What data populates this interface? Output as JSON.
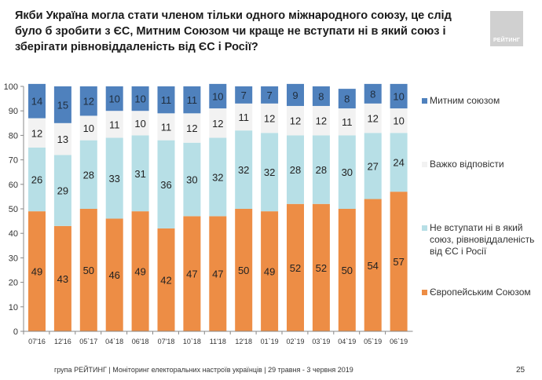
{
  "header": {
    "title": "Якби Україна могла стати членом тільки одного міжнародного союзу, це слід було б зробити з ЄС, Митним Союзом чи краще не вступати ні в який союз і зберігати рівновіддаленість від ЄС і Росії?",
    "logo_text": "РЕЙТИНГ"
  },
  "footer": {
    "text": "група РЕЙТИНГ | Моніторинг електоральних настроїв українців  | 29 травня - 3 червня 2019",
    "page_number": "25"
  },
  "chart_data": {
    "type": "bar",
    "stacked": true,
    "title": "",
    "xlabel": "",
    "ylabel": "",
    "ylim": [
      0,
      100
    ],
    "yticks": [
      0,
      10,
      20,
      30,
      40,
      50,
      60,
      70,
      80,
      90,
      100
    ],
    "grid": false,
    "legend_position": "right",
    "categories": [
      "07'16",
      "12'16",
      "05`17",
      "04`18",
      "06'18",
      "07'18",
      "10`18",
      "11'18",
      "12'18",
      "01`19",
      "02`19",
      "03`19",
      "04`19",
      "05`19",
      "06`19"
    ],
    "series": [
      {
        "name": "Європейським Союзом",
        "color": "#ed8d45",
        "values": [
          49,
          43,
          50,
          46,
          49,
          42,
          47,
          47,
          50,
          49,
          52,
          52,
          50,
          54,
          57
        ]
      },
      {
        "name": "Не вступати ні в який союз, рівновіддаленість від ЄС і Росії",
        "color": "#b7dfe6",
        "values": [
          26,
          29,
          28,
          33,
          31,
          36,
          30,
          32,
          32,
          32,
          28,
          28,
          30,
          27,
          24
        ]
      },
      {
        "name": "Важко відповісти",
        "color": "#f2f2f2",
        "values": [
          12,
          13,
          10,
          11,
          10,
          11,
          12,
          12,
          11,
          12,
          12,
          12,
          11,
          12,
          10
        ]
      },
      {
        "name": "Митним союзом",
        "color": "#4f81bd",
        "values": [
          14,
          15,
          12,
          10,
          10,
          11,
          11,
          10,
          7,
          7,
          9,
          8,
          8,
          8,
          10
        ]
      }
    ]
  },
  "legend": [
    {
      "label": "Митним союзом",
      "color": "#4f81bd"
    },
    {
      "label": "Важко відповісти",
      "color": "#f2f2f2"
    },
    {
      "label": "Не вступати ні в який союз, рівновіддаленість від ЄС і Росії",
      "color": "#b7dfe6"
    },
    {
      "label": "Європейським Союзом",
      "color": "#ed8d45"
    }
  ]
}
